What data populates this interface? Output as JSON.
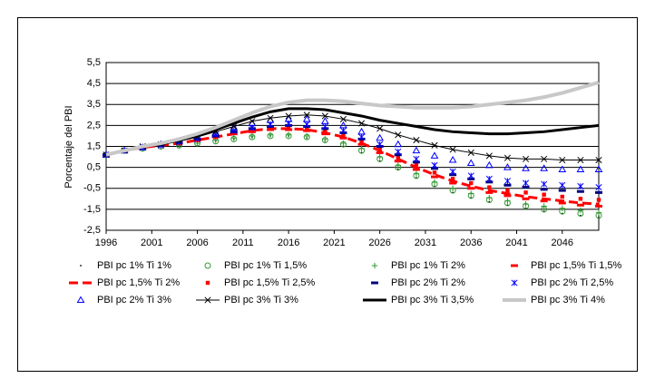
{
  "chart_data": {
    "type": "line",
    "y_label": "Porcentaje del PBI",
    "x": [
      1996,
      1998,
      2000,
      2002,
      2004,
      2006,
      2008,
      2010,
      2012,
      2014,
      2016,
      2018,
      2020,
      2022,
      2024,
      2026,
      2028,
      2030,
      2032,
      2034,
      2036,
      2038,
      2040,
      2042,
      2044,
      2046,
      2048,
      2050
    ],
    "xlim": [
      1996,
      2050
    ],
    "xticks": [
      1996,
      2001,
      2006,
      2011,
      2016,
      2021,
      2026,
      2031,
      2036,
      2041,
      2046
    ],
    "ylim": [
      -2.5,
      5.5
    ],
    "yticks": [
      {
        "value": -2.5,
        "label": "-2,5"
      },
      {
        "value": -1.5,
        "label": "-1,5"
      },
      {
        "value": -0.5,
        "label": "-0,5"
      },
      {
        "value": 0.5,
        "label": "0,5"
      },
      {
        "value": 1.5,
        "label": "1,5"
      },
      {
        "value": 2.5,
        "label": "2,5"
      },
      {
        "value": 3.5,
        "label": "3,5"
      },
      {
        "value": 4.5,
        "label": "4,5"
      },
      {
        "value": 5.5,
        "label": "5,5"
      }
    ],
    "grid": true,
    "legend": "bottom",
    "series": [
      {
        "name": "PBI pc 1% Ti 1%",
        "color": "#000000",
        "marker": "dot",
        "line_width": 0,
        "values": [
          1.1,
          1.3,
          1.4,
          1.5,
          1.55,
          1.65,
          1.75,
          1.85,
          1.95,
          2.0,
          2.0,
          1.9,
          1.75,
          1.5,
          1.2,
          0.8,
          0.4,
          0.0,
          -0.4,
          -0.7,
          -0.95,
          -1.15,
          -1.3,
          -1.45,
          -1.6,
          -1.7,
          -1.8,
          -1.9
        ]
      },
      {
        "name": "PBI pc 1% Ti 1,5%",
        "color": "#339933",
        "marker": "circle",
        "line_width": 0,
        "values": [
          1.1,
          1.3,
          1.4,
          1.5,
          1.55,
          1.65,
          1.75,
          1.85,
          1.95,
          2.0,
          2.0,
          1.95,
          1.8,
          1.6,
          1.3,
          0.9,
          0.5,
          0.1,
          -0.3,
          -0.6,
          -0.85,
          -1.05,
          -1.2,
          -1.35,
          -1.5,
          -1.6,
          -1.7,
          -1.8
        ]
      },
      {
        "name": "PBI pc 1% Ti 2%",
        "color": "#339933",
        "marker": "plus",
        "line_width": 0,
        "values": [
          1.1,
          1.3,
          1.4,
          1.5,
          1.55,
          1.65,
          1.8,
          1.9,
          2.0,
          2.05,
          2.05,
          2.0,
          1.85,
          1.65,
          1.4,
          1.0,
          0.6,
          0.2,
          -0.2,
          -0.5,
          -0.75,
          -0.95,
          -1.1,
          -1.25,
          -1.35,
          -1.45,
          -1.55,
          -1.65
        ]
      },
      {
        "name": "PBI pc 1,5% Ti 1,5%",
        "color": "#ff0000",
        "marker": "dash",
        "line_width": 0,
        "values": [
          1.1,
          1.3,
          1.45,
          1.55,
          1.65,
          1.8,
          1.95,
          2.1,
          2.2,
          2.3,
          2.3,
          2.25,
          2.1,
          1.9,
          1.6,
          1.2,
          0.8,
          0.4,
          0.05,
          -0.25,
          -0.5,
          -0.7,
          -0.85,
          -1.0,
          -1.1,
          -1.2,
          -1.3,
          -1.35
        ]
      },
      {
        "name": "PBI pc 1,5% Ti 2%",
        "color": "#ff0000",
        "marker": "none",
        "line_width": 3,
        "values": [
          1.1,
          1.3,
          1.45,
          1.55,
          1.65,
          1.8,
          1.95,
          2.1,
          2.25,
          2.35,
          2.35,
          2.3,
          2.15,
          1.95,
          1.65,
          1.3,
          0.9,
          0.5,
          0.15,
          -0.15,
          -0.4,
          -0.6,
          -0.75,
          -0.9,
          -1.0,
          -1.1,
          -1.2,
          -1.25
        ]
      },
      {
        "name": "PBI pc 1,5% Ti 2,5%",
        "color": "#ff0000",
        "marker": "square",
        "line_width": 0,
        "values": [
          1.1,
          1.3,
          1.45,
          1.55,
          1.65,
          1.8,
          1.95,
          2.15,
          2.3,
          2.4,
          2.4,
          2.35,
          2.2,
          2.0,
          1.7,
          1.35,
          0.95,
          0.6,
          0.25,
          -0.05,
          -0.25,
          -0.45,
          -0.6,
          -0.7,
          -0.8,
          -0.9,
          -1.0,
          -1.05
        ]
      },
      {
        "name": "PBI pc 2% Ti 2%",
        "color": "#000080",
        "marker": "dash",
        "line_width": 0,
        "values": [
          1.1,
          1.3,
          1.45,
          1.55,
          1.7,
          1.85,
          2.0,
          2.2,
          2.35,
          2.45,
          2.5,
          2.45,
          2.35,
          2.15,
          1.85,
          1.5,
          1.1,
          0.75,
          0.45,
          0.15,
          -0.05,
          -0.2,
          -0.35,
          -0.45,
          -0.55,
          -0.6,
          -0.65,
          -0.7
        ]
      },
      {
        "name": "PBI pc 2% Ti 2,5%",
        "color": "#0000ff",
        "marker": "asterisk",
        "line_width": 0,
        "values": [
          1.1,
          1.3,
          1.45,
          1.55,
          1.7,
          1.85,
          2.05,
          2.25,
          2.4,
          2.55,
          2.6,
          2.55,
          2.45,
          2.25,
          1.95,
          1.6,
          1.25,
          0.9,
          0.6,
          0.3,
          0.1,
          -0.05,
          -0.15,
          -0.25,
          -0.3,
          -0.35,
          -0.4,
          -0.45
        ]
      },
      {
        "name": "PBI pc 2% Ti 3%",
        "color": "#0000ff",
        "marker": "triangle",
        "line_width": 0,
        "values": [
          1.1,
          1.3,
          1.45,
          1.6,
          1.75,
          1.95,
          2.15,
          2.4,
          2.6,
          2.75,
          2.8,
          2.8,
          2.7,
          2.5,
          2.2,
          1.9,
          1.6,
          1.3,
          1.05,
          0.85,
          0.7,
          0.6,
          0.5,
          0.45,
          0.45,
          0.4,
          0.4,
          0.4
        ]
      },
      {
        "name": "PBI pc 3% Ti 3%",
        "color": "#000000",
        "marker": "x",
        "line_width": 1,
        "values": [
          1.1,
          1.3,
          1.5,
          1.6,
          1.75,
          1.95,
          2.2,
          2.45,
          2.7,
          2.85,
          2.95,
          3.0,
          2.95,
          2.8,
          2.6,
          2.35,
          2.05,
          1.8,
          1.55,
          1.35,
          1.2,
          1.05,
          0.95,
          0.9,
          0.9,
          0.85,
          0.85,
          0.85
        ]
      },
      {
        "name": "PBI pc 3% Ti 3,5%",
        "color": "#000000",
        "marker": "none",
        "line_width": 3,
        "values": [
          1.1,
          1.3,
          1.5,
          1.6,
          1.8,
          2.0,
          2.3,
          2.6,
          2.9,
          3.15,
          3.3,
          3.3,
          3.25,
          3.1,
          2.95,
          2.75,
          2.6,
          2.45,
          2.3,
          2.2,
          2.15,
          2.1,
          2.1,
          2.15,
          2.2,
          2.3,
          2.4,
          2.5
        ]
      },
      {
        "name": "PBI pc 3% Ti 4%",
        "color": "#c8c8c8",
        "marker": "none",
        "line_width": 4,
        "values": [
          1.1,
          1.3,
          1.5,
          1.65,
          1.85,
          2.1,
          2.4,
          2.75,
          3.1,
          3.4,
          3.6,
          3.7,
          3.7,
          3.65,
          3.55,
          3.45,
          3.4,
          3.35,
          3.35,
          3.35,
          3.4,
          3.5,
          3.6,
          3.7,
          3.85,
          4.05,
          4.3,
          4.55
        ]
      }
    ]
  }
}
